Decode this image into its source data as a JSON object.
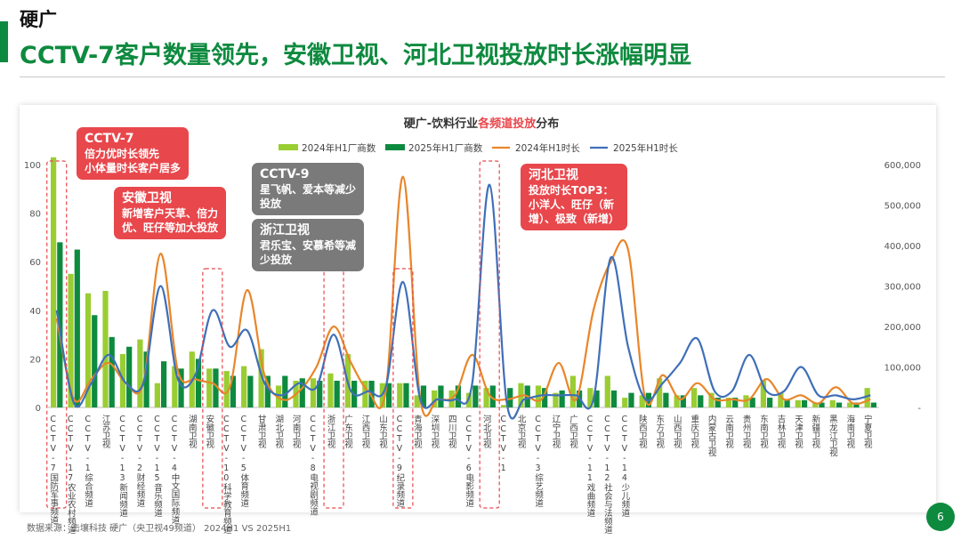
{
  "header": {
    "small_title": "硬广",
    "main_title": "CCTV-7客户数量领先，安徽卫视、河北卫视投放时长涨幅明显"
  },
  "footer": {
    "source": "数据来源：击壤科技 硬广（央卫视49频道） 2024H1 VS 2025H1"
  },
  "page_number": "6",
  "callouts": [
    {
      "title": "CCTV-7",
      "body": "倍力优时长领先\n小体量时长客户居多"
    },
    {
      "title": "安徽卫视",
      "body": "新增客户天草、倍力\n优、旺仔等加大投放"
    },
    {
      "title": "CCTV-9",
      "body": "星飞帆、爱本等减少\n投放"
    },
    {
      "title": "浙江卫视",
      "body": "君乐宝、安慕希等减\n少投放"
    },
    {
      "title": "河北卫视",
      "body": "投放时长TOP3：\n小洋人、旺仔（新\n增）、极致（新增）"
    }
  ],
  "colors": {
    "bar2024": "#9acd32",
    "bar2025": "#0e8a3f",
    "line2024": "#e8862a",
    "line2025": "#3f6fb8",
    "callout_red": "#e8474c",
    "callout_grey": "#7a7a7a"
  },
  "chart_data": {
    "type": "bar+line",
    "title": {
      "before": "硬广-饮料行业",
      "highlight": "各频道投放",
      "after": "分布"
    },
    "legend": [
      "2024年H1厂商数",
      "2025年H1厂商数",
      "2024年H1时长",
      "2025年H1时长"
    ],
    "left_axis": {
      "min": 0,
      "max": 100,
      "ticks": [
        "0",
        "20",
        "40",
        "60",
        "80",
        "100"
      ]
    },
    "right_axis": {
      "min": 0,
      "max": 600000,
      "ticks": [
        "-",
        "100,000",
        "200,000",
        "300,000",
        "400,000",
        "500,000",
        "600,000"
      ]
    },
    "categories": [
      "CCTV-7国防军事频道",
      "CCTV-17农业农村频道",
      "CCTV-1综合频道",
      "江苏卫视",
      "CCTV-13新闻频道",
      "CCTV-2财经频道",
      "CCTV-15音乐频道",
      "CCTV-4中文国际频道",
      "湖南卫视",
      "安徽卫视",
      "CCTV-10科学教育频道",
      "CCTV-5体育频道",
      "甘肃卫视",
      "湖北卫视",
      "河南卫视",
      "CCTV-8电视剧频道",
      "浙江卫视",
      "广东卫视",
      "江西卫视",
      "山东卫视",
      "CCTV-9纪录频道",
      "青海卫视",
      "深圳卫视",
      "四川卫视",
      "CCTV-6电影频道",
      "河北卫视",
      "CCTV-1",
      "北京卫视",
      "CCTV-3综艺频道",
      "辽宁卫视",
      "广西卫视",
      "CCTV-11戏曲频道",
      "CCTV-12社会与法频道",
      "CCTV-14少儿频道",
      "陕西卫视",
      "东方卫视",
      "山西卫视",
      "重庆卫视",
      "内蒙古卫视",
      "云南卫视",
      "贵州卫视",
      "东南卫视",
      "吉林卫视",
      "天津卫视",
      "新疆卫视",
      "黑龙江卫视",
      "海南卫视",
      "宁夏卫视"
    ],
    "series": [
      {
        "name": "2024年H1厂商数",
        "kind": "bar",
        "axis": "left",
        "values": [
          103,
          55,
          47,
          48,
          22,
          28,
          10,
          17,
          23,
          16,
          15,
          17,
          24,
          9,
          11,
          12,
          14,
          22,
          11,
          10,
          10,
          5,
          7,
          7,
          6,
          8,
          1,
          10,
          9,
          6,
          13,
          8,
          13,
          4,
          5,
          12,
          5,
          8,
          6,
          4,
          5,
          11,
          6,
          3,
          2,
          3,
          2,
          8
        ]
      },
      {
        "name": "2025年H1厂商数",
        "kind": "bar",
        "axis": "left",
        "values": [
          68,
          65,
          38,
          29,
          25,
          23,
          19,
          16,
          20,
          16,
          13,
          13,
          13,
          13,
          12,
          11,
          11,
          11,
          11,
          10,
          10,
          9,
          9,
          9,
          9,
          9,
          8,
          9,
          8,
          7,
          7,
          7,
          7,
          6,
          6,
          6,
          5,
          5,
          4,
          4,
          4,
          4,
          3,
          3,
          2,
          2,
          2,
          2
        ]
      },
      {
        "name": "2024年H1时长",
        "kind": "line",
        "axis": "right",
        "values": [
          220000,
          20000,
          70000,
          110000,
          60000,
          60000,
          380000,
          90000,
          70000,
          60000,
          50000,
          290000,
          80000,
          20000,
          40000,
          100000,
          200000,
          110000,
          40000,
          40000,
          570000,
          20000,
          20000,
          30000,
          130000,
          30000,
          20000,
          30000,
          20000,
          110000,
          20000,
          240000,
          360000,
          390000,
          20000,
          80000,
          20000,
          60000,
          20000,
          20000,
          20000,
          70000,
          20000,
          30000,
          10000,
          50000,
          10000,
          20000
        ]
      },
      {
        "name": "2025年H1时长",
        "kind": "line",
        "axis": "right",
        "values": [
          240000,
          10000,
          60000,
          130000,
          60000,
          60000,
          300000,
          70000,
          80000,
          240000,
          150000,
          190000,
          60000,
          30000,
          60000,
          50000,
          180000,
          40000,
          40000,
          50000,
          310000,
          20000,
          20000,
          20000,
          60000,
          550000,
          10000,
          20000,
          30000,
          30000,
          30000,
          20000,
          370000,
          150000,
          20000,
          60000,
          110000,
          170000,
          40000,
          40000,
          130000,
          40000,
          40000,
          100000,
          30000,
          30000,
          20000,
          30000
        ]
      }
    ]
  }
}
